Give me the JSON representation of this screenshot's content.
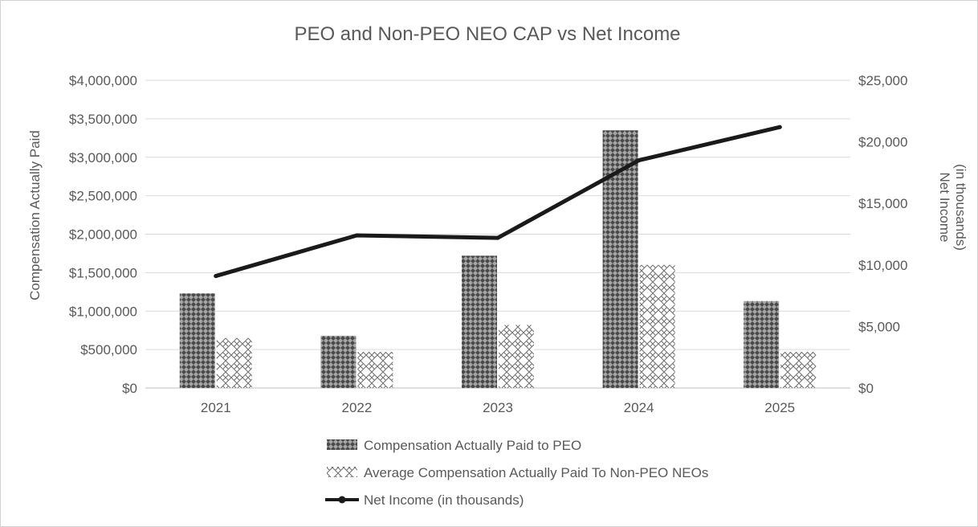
{
  "chart_data": {
    "type": "bar",
    "title": "PEO and Non-PEO NEO CAP vs Net Income",
    "categories": [
      "2021",
      "2022",
      "2023",
      "2024",
      "2025"
    ],
    "series": [
      {
        "name": "Compensation Actually Paid to PEO",
        "kind": "bar",
        "axis": "left",
        "pattern": "dense-dark-mesh",
        "values": [
          1230000,
          680000,
          1720000,
          3350000,
          1130000
        ]
      },
      {
        "name": "Average Compensation Actually Paid To Non-PEO NEOs",
        "kind": "bar",
        "axis": "left",
        "pattern": "light-zigzag-mesh",
        "values": [
          650000,
          470000,
          820000,
          1600000,
          470000
        ]
      },
      {
        "name": "Net Income (in thousands)",
        "kind": "line",
        "axis": "right",
        "color": "#1a1a1a",
        "values": [
          9100,
          12400,
          12200,
          18500,
          21200
        ]
      }
    ],
    "y_left": {
      "label": "Compensation Actually Paid",
      "range": [
        0,
        4000000
      ],
      "ticks": [
        "$0",
        "$500,000",
        "$1,000,000",
        "$1,500,000",
        "$2,000,000",
        "$2,500,000",
        "$3,000,000",
        "$3,500,000",
        "$4,000,000"
      ]
    },
    "y_right": {
      "label_lines": [
        "Net Income",
        "(in thousands)"
      ],
      "range": [
        0,
        25000
      ],
      "ticks": [
        "$0",
        "$5,000",
        "$10,000",
        "$15,000",
        "$20,000",
        "$25,000"
      ]
    },
    "grid": true,
    "legend_position": "bottom"
  }
}
